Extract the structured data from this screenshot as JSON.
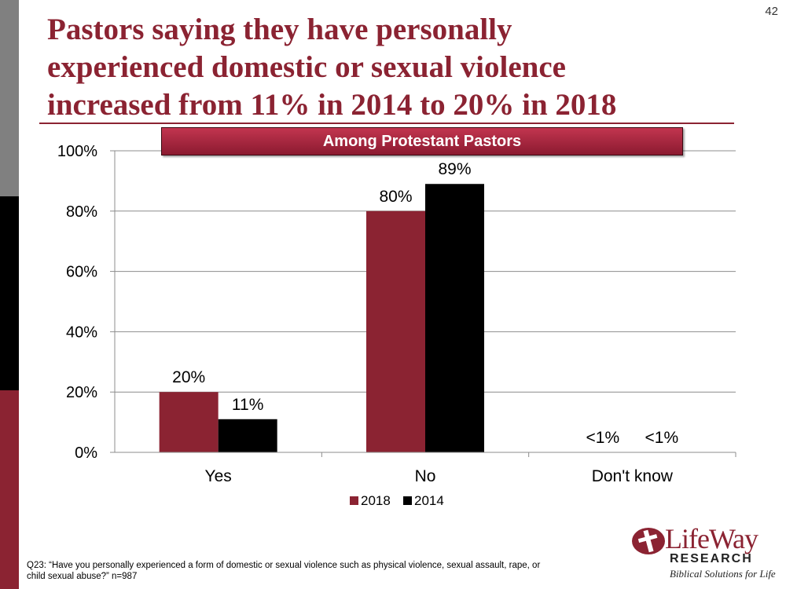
{
  "slide_number": "42",
  "title_lines": [
    "Pastors saying they have personally",
    "experienced domestic or sexual violence",
    "increased from 11% in 2014 to 20% in 2018"
  ],
  "subtitle": "Among Protestant Pastors",
  "footnote_lines": [
    "Q23: “Have you personally experienced a form of domestic or sexual violence such as physical violence, sexual assault, rape,  or",
    "child sexual abuse?” n=987"
  ],
  "logo": {
    "word": "LifeWay",
    "research": "RESEARCH",
    "tagline": "Biblical Solutions for Life"
  },
  "colors": {
    "series_2018": "#8b2332",
    "series_2014": "#000000",
    "accent": "#8b2332"
  },
  "chart_data": {
    "type": "bar",
    "title": "Pastors saying they have personally experienced domestic or sexual violence increased from 11% in 2014 to 20% in 2018",
    "subtitle": "Among Protestant Pastors",
    "categories": [
      "Yes",
      "No",
      "Don't know"
    ],
    "series": [
      {
        "name": "2018",
        "values": [
          20,
          80,
          0
        ],
        "labels": [
          "20%",
          "80%",
          "<1%"
        ]
      },
      {
        "name": "2014",
        "values": [
          11,
          89,
          0
        ],
        "labels": [
          "11%",
          "89%",
          "<1%"
        ]
      }
    ],
    "y_ticks": [
      "0%",
      "20%",
      "40%",
      "60%",
      "80%",
      "100%"
    ],
    "ylim": [
      0,
      100
    ],
    "xlabel": "",
    "ylabel": "",
    "grid": true,
    "legend_position": "bottom"
  }
}
